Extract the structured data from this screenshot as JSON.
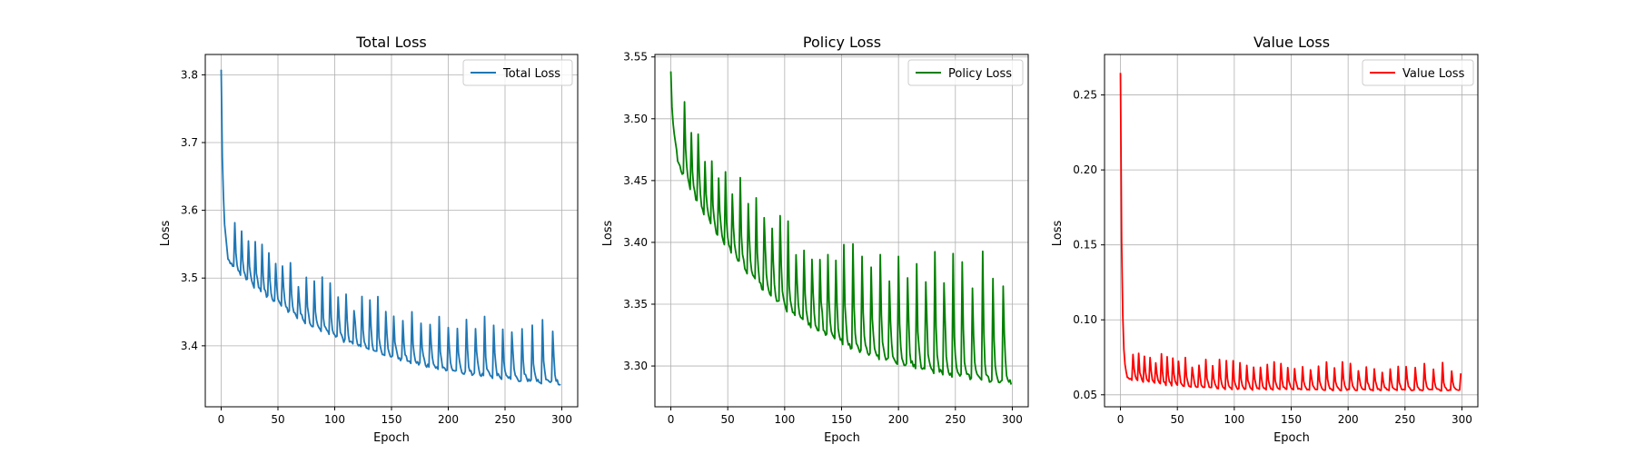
{
  "figure": {
    "background": "#ffffff"
  },
  "chart_data": [
    {
      "type": "line",
      "id": "total",
      "title": "Total Loss",
      "xlabel": "Epoch",
      "ylabel": "Loss",
      "xlim": [
        -14,
        314
      ],
      "ylim": [
        3.31,
        3.83
      ],
      "xticks": [
        0,
        50,
        100,
        150,
        200,
        250,
        300
      ],
      "yticks": [
        3.4,
        3.5,
        3.6,
        3.7,
        3.8
      ],
      "ytick_decimals": 1,
      "grid": true,
      "legend": "upper-right",
      "color": "#1f77b4",
      "series": [
        {
          "name": "Total Loss",
          "profile": {
            "start": 3.805,
            "fast_amp": 0.235,
            "fast_tau": 2.0,
            "slow_start": 3.535,
            "slow_end": 3.331,
            "slow_tau": 110,
            "spike_start": 0.06,
            "spike_end": 0.08,
            "period_start": 6,
            "period_end": 9,
            "noise": 0.006
          }
        }
      ]
    },
    {
      "type": "line",
      "id": "policy",
      "title": "Policy Loss",
      "xlabel": "Epoch",
      "ylabel": "Loss",
      "xlim": [
        -14,
        314
      ],
      "ylim": [
        3.267,
        3.552
      ],
      "xticks": [
        0,
        50,
        100,
        150,
        200,
        250,
        300
      ],
      "yticks": [
        3.3,
        3.35,
        3.4,
        3.45,
        3.5,
        3.55
      ],
      "ytick_decimals": 2,
      "grid": true,
      "legend": "upper-right",
      "color": "#008000",
      "series": [
        {
          "name": "Policy Loss",
          "profile": {
            "start": 3.54,
            "fast_amp": 0.05,
            "fast_tau": 3.0,
            "slow_start": 3.475,
            "slow_end": 3.278,
            "slow_tau": 95,
            "spike_start": 0.055,
            "spike_end": 0.09,
            "period_start": 6,
            "period_end": 9,
            "noise": 0.004
          }
        }
      ]
    },
    {
      "type": "line",
      "id": "value",
      "title": "Value Loss",
      "xlabel": "Epoch",
      "ylabel": "Loss",
      "xlim": [
        -14,
        314
      ],
      "ylim": [
        0.042,
        0.277
      ],
      "xticks": [
        0,
        50,
        100,
        150,
        200,
        250,
        300
      ],
      "yticks": [
        0.05,
        0.1,
        0.15,
        0.2,
        0.25
      ],
      "ytick_decimals": 2,
      "grid": true,
      "legend": "upper-right",
      "color": "#ff0000",
      "series": [
        {
          "name": "Value Loss",
          "profile": {
            "start": 0.265,
            "fast_amp": 0.195,
            "fast_tau": 1.3,
            "slow_start": 0.062,
            "slow_end": 0.053,
            "slow_tau": 40,
            "spike_start": 0.018,
            "spike_end": 0.015,
            "period_start": 5,
            "period_end": 8,
            "noise": 0.001
          }
        }
      ]
    }
  ]
}
